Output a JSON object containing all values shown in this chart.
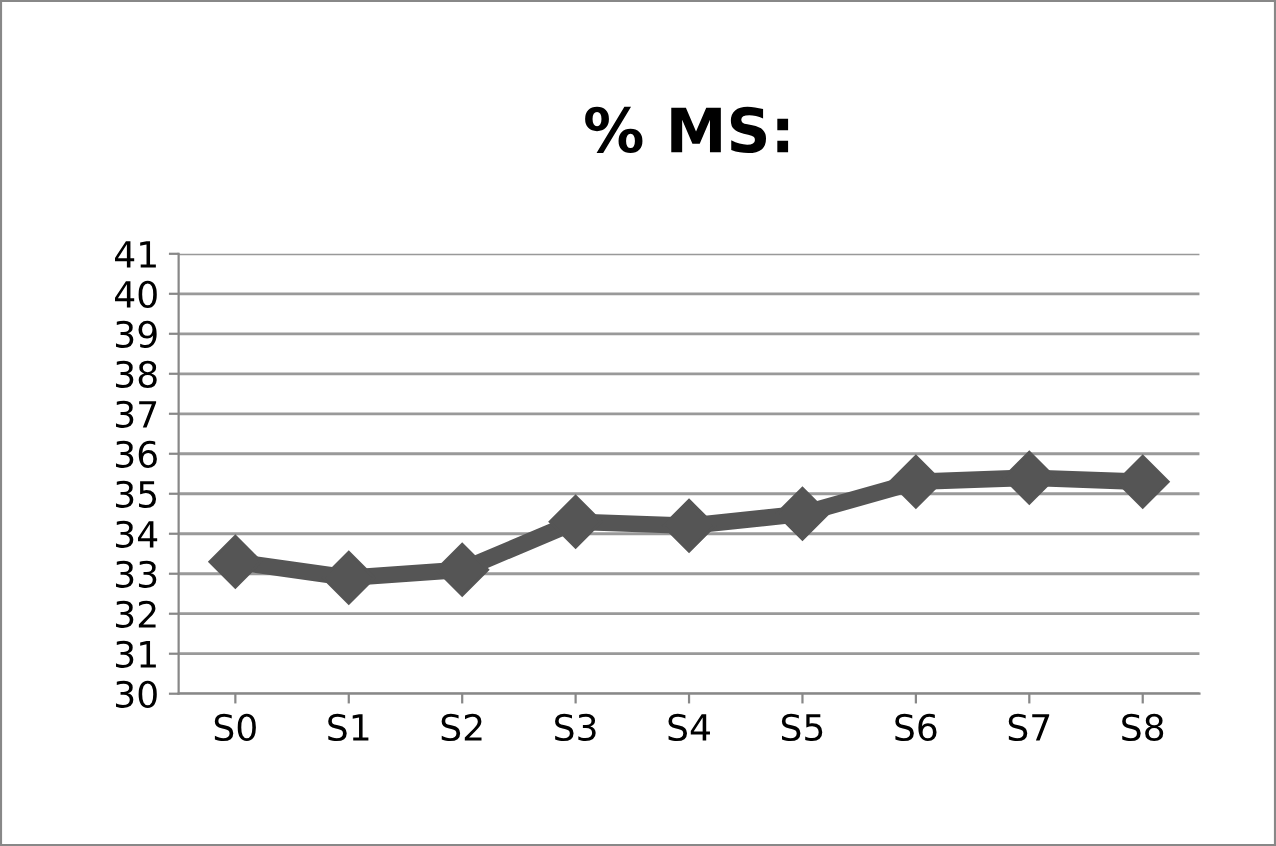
{
  "chart_data": {
    "type": "line",
    "title": "% MS:",
    "categories": [
      "S0",
      "S1",
      "S2",
      "S3",
      "S4",
      "S5",
      "S6",
      "S7",
      "S8"
    ],
    "series": [
      {
        "color": "#555555",
        "values": [
          33.3,
          32.9,
          33.1,
          34.3,
          34.2,
          34.5,
          35.3,
          35.4,
          35.3
        ]
      }
    ],
    "ylim": [
      30,
      41
    ],
    "yticks": [
      30,
      31,
      32,
      33,
      34,
      35,
      36,
      37,
      38,
      39,
      40,
      41
    ],
    "grid": "y",
    "legend": false,
    "marker": "diamond",
    "line_style": "solid"
  }
}
